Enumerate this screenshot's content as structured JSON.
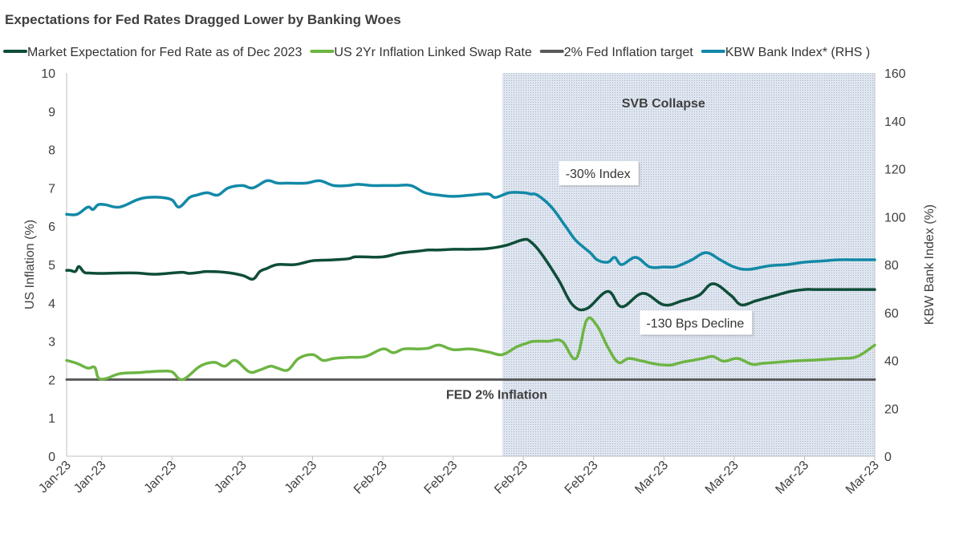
{
  "chart_data": {
    "type": "line",
    "title": "Expectations for Fed Rates Dragged Lower by Banking Woes",
    "ylabel": "US Inflation (%)",
    "y2label": "KBW Bank Index (%)",
    "ylim": [
      0,
      10
    ],
    "y2lim": [
      0,
      160
    ],
    "yticks": [
      0,
      1,
      2,
      3,
      4,
      5,
      6,
      7,
      8,
      9,
      10
    ],
    "y2ticks": [
      0,
      20,
      40,
      60,
      80,
      100,
      120,
      140,
      160
    ],
    "x_tick_labels": [
      "Jan-23",
      "Jan-23",
      "Jan-23",
      "Jan-23",
      "Jan-23",
      "Feb-23",
      "Feb-23",
      "Feb-23",
      "Feb-23",
      "Mar-23",
      "Mar-23",
      "Mar-23",
      "Mar-23"
    ],
    "legend_position": "top",
    "grid": false,
    "series": [
      {
        "name": "Market Expectation for Fed Rate as of Dec 2023",
        "color": "#0f4d38",
        "axis": "left",
        "x": [
          0,
          0.1,
          0.25,
          0.35,
          0.5,
          0.65,
          1,
          1.5,
          2,
          2.5,
          3,
          3.3,
          3.5,
          3.8,
          4,
          4.5,
          5,
          5.3,
          5.5,
          5.7,
          6,
          6.5,
          7,
          7.5,
          8,
          8.2,
          8.5,
          9,
          9.5,
          10,
          10.3,
          10.6,
          11,
          11.5,
          12,
          12.5,
          13,
          13.2,
          13.5,
          14,
          14.4,
          14.8,
          15.4,
          15.8,
          16.4,
          17,
          17.5,
          18,
          18.4,
          18.9,
          19.2,
          19.6,
          19.8,
          20.2,
          20.6,
          21,
          21.3,
          21.7,
          22,
          22.5,
          23
        ],
        "y": [
          4.85,
          4.85,
          4.82,
          4.95,
          4.8,
          4.78,
          4.77,
          4.78,
          4.78,
          4.75,
          4.78,
          4.8,
          4.77,
          4.8,
          4.82,
          4.8,
          4.72,
          4.62,
          4.82,
          4.9,
          5.0,
          5.0,
          5.1,
          5.12,
          5.15,
          5.2,
          5.2,
          5.2,
          5.3,
          5.35,
          5.38,
          5.38,
          5.4,
          5.4,
          5.42,
          5.5,
          5.65,
          5.6,
          5.3,
          4.6,
          3.95,
          3.85,
          4.3,
          3.9,
          4.25,
          3.95,
          4.05,
          4.2,
          4.5,
          4.2,
          3.95,
          4.05,
          4.1,
          4.2,
          4.3,
          4.35,
          4.35,
          4.35,
          4.35,
          4.35,
          4.35
        ]
      },
      {
        "name": "US 2Yr Inflation Linked Swap Rate",
        "color": "#6db543",
        "axis": "left",
        "x": [
          0,
          0.3,
          0.6,
          0.8,
          0.9,
          1.1,
          1.5,
          2,
          2.3,
          2.7,
          3,
          3.3,
          3.8,
          4.2,
          4.5,
          4.8,
          5.2,
          5.5,
          5.8,
          6,
          6.3,
          6.6,
          7,
          7.3,
          7.6,
          8,
          8.5,
          9,
          9.3,
          9.6,
          10,
          10.3,
          10.6,
          11,
          11.5,
          12,
          12.4,
          12.8,
          13.1,
          13.3,
          13.7,
          14.1,
          14.5,
          14.8,
          15.1,
          15.4,
          15.7,
          16,
          16.4,
          16.8,
          17.2,
          17.5,
          17.8,
          18.1,
          18.4,
          18.7,
          19.1,
          19.5,
          19.8,
          20.2,
          20.6,
          21,
          21.5,
          22,
          22.5,
          23
        ],
        "y": [
          2.5,
          2.42,
          2.3,
          2.32,
          2.05,
          2.02,
          2.15,
          2.18,
          2.2,
          2.22,
          2.2,
          2.0,
          2.35,
          2.45,
          2.35,
          2.5,
          2.2,
          2.25,
          2.35,
          2.3,
          2.25,
          2.55,
          2.65,
          2.5,
          2.55,
          2.58,
          2.6,
          2.8,
          2.7,
          2.8,
          2.8,
          2.82,
          2.9,
          2.78,
          2.8,
          2.72,
          2.65,
          2.85,
          2.95,
          3.0,
          3.0,
          3.0,
          2.55,
          3.55,
          3.4,
          2.85,
          2.45,
          2.55,
          2.48,
          2.4,
          2.38,
          2.45,
          2.5,
          2.55,
          2.6,
          2.48,
          2.55,
          2.4,
          2.42,
          2.45,
          2.48,
          2.5,
          2.52,
          2.55,
          2.6,
          2.9
        ]
      },
      {
        "name": "2% Fed Inflation target",
        "color": "#595959",
        "axis": "left",
        "x": [
          0,
          23
        ],
        "y": [
          2,
          2
        ]
      },
      {
        "name": "KBW Bank Index* (RHS )",
        "color": "#1289a7",
        "axis": "right",
        "x": [
          0,
          0.3,
          0.6,
          0.75,
          0.9,
          1.1,
          1.5,
          2,
          2.3,
          2.7,
          3,
          3.2,
          3.5,
          3.7,
          4,
          4.3,
          4.6,
          5,
          5.3,
          5.7,
          6,
          6.3,
          6.8,
          7.2,
          7.6,
          8,
          8.3,
          8.7,
          9,
          9.4,
          9.8,
          10.2,
          10.6,
          11,
          11.5,
          12,
          12.2,
          12.6,
          13,
          13.2,
          13.4,
          13.8,
          14.2,
          14.5,
          14.9,
          15.1,
          15.4,
          15.6,
          15.8,
          16.2,
          16.6,
          17,
          17.3,
          17.5,
          17.8,
          18.2,
          18.6,
          19,
          19.4,
          20,
          20.5,
          21,
          21.5,
          22,
          22.5,
          23
        ],
        "y": [
          101,
          101,
          104,
          103,
          105,
          105,
          104,
          107,
          108,
          108,
          107,
          104,
          108,
          109,
          110,
          109,
          112,
          113,
          112,
          115,
          114,
          114,
          114,
          115,
          113,
          113,
          113.5,
          113,
          113,
          113,
          113,
          110,
          109,
          108.5,
          109,
          109.5,
          108,
          110,
          110,
          109.5,
          109,
          104,
          96,
          90,
          85,
          82,
          81,
          83,
          80,
          83,
          79,
          79,
          79,
          80,
          82,
          85,
          82,
          79,
          78,
          79.5,
          80,
          81,
          81.5,
          82,
          82,
          82
        ]
      }
    ],
    "annotations": [
      {
        "text": "SVB Collapse",
        "x": 15.8,
        "y": 9.1,
        "bold": true
      },
      {
        "text": "-30% Index",
        "x": 14.2,
        "y": 7.3,
        "box": true
      },
      {
        "text": "-130 Bps Decline",
        "x": 16.5,
        "y": 3.4,
        "box": true
      },
      {
        "text": "FED 2% Inflation",
        "x": 10.8,
        "y": 1.5,
        "bold": true
      }
    ],
    "shaded_region": {
      "x_start": 12.4,
      "x_end": 23,
      "color": "#dfe6f0"
    }
  }
}
